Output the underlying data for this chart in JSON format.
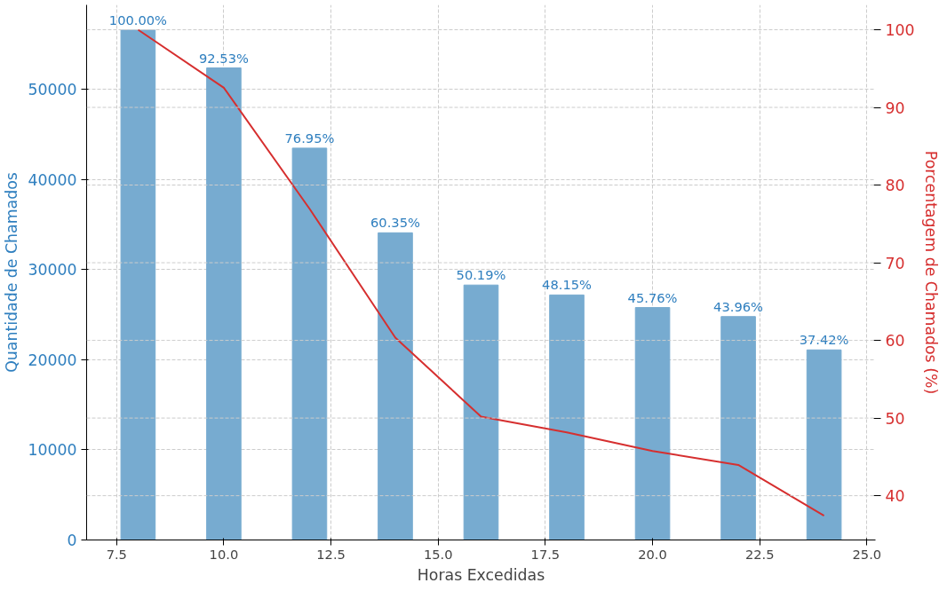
{
  "chart_data": {
    "type": "bar",
    "xlabel": "Horas Excedidas",
    "ylabel": "Quantidade de Chamados",
    "y2label": "Porcentagem de Chamados (%)",
    "x": [
      8,
      10,
      12,
      14,
      16,
      18,
      20,
      22,
      24
    ],
    "series": [
      {
        "color": "#77abd0",
        "values": [
          56600,
          52400,
          43500,
          34100,
          28300,
          27200,
          25800,
          24800,
          21100
        ]
      },
      {
        "type": "line",
        "axis": "y2",
        "color": "#d62f2f",
        "values": [
          100,
          92.53,
          76.95,
          60.35,
          50.19,
          48.15,
          45.76,
          43.96,
          37.42
        ]
      }
    ],
    "annotations": [
      {
        "text": "100.00%",
        "x": 8,
        "y": 56600
      },
      {
        "text": "92.53%",
        "x": 10,
        "y": 52400
      },
      {
        "text": "76.95%",
        "x": 12,
        "y": 43500
      },
      {
        "text": "60.35%",
        "x": 14,
        "y": 34100
      },
      {
        "text": "50.19%",
        "x": 16,
        "y": 28300
      },
      {
        "text": "48.15%",
        "x": 18,
        "y": 27200
      },
      {
        "text": "45.76%",
        "x": 20,
        "y": 25800
      },
      {
        "text": "43.96%",
        "x": 22,
        "y": 24800
      },
      {
        "text": "37.42%",
        "x": 24,
        "y": 21100
      }
    ],
    "xlim": [
      6.8,
      25.2
    ],
    "xticks": [
      {
        "value": 7.5,
        "label": "7.5"
      },
      {
        "value": 10,
        "label": "10.0"
      },
      {
        "value": 12.5,
        "label": "12.5"
      },
      {
        "value": 15,
        "label": "15.0"
      },
      {
        "value": 17.5,
        "label": "17.5"
      },
      {
        "value": 20,
        "label": "20.0"
      },
      {
        "value": 22.5,
        "label": "22.5"
      },
      {
        "value": 25,
        "label": "25.0"
      }
    ],
    "ylim": [
      0,
      59400
    ],
    "yticks": [
      0,
      10000,
      20000,
      30000,
      40000,
      50000
    ],
    "y2lim": [
      34.3,
      103.2
    ],
    "y2ticks": [
      40,
      50,
      60,
      70,
      80,
      90,
      100
    ],
    "grid": true
  }
}
